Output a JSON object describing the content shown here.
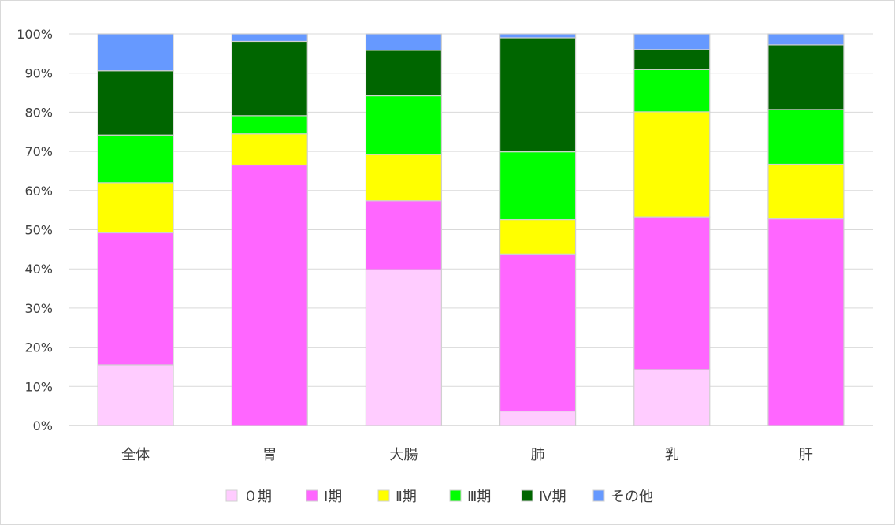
{
  "chart_data": {
    "type": "bar",
    "stacked": true,
    "percent": true,
    "categories": [
      "全体",
      "胃",
      "大腸",
      "肺",
      "乳",
      "肝"
    ],
    "yticks": [
      "0%",
      "10%",
      "20%",
      "30%",
      "40%",
      "50%",
      "60%",
      "70%",
      "80%",
      "90%",
      "100%"
    ],
    "ylim": [
      0,
      100
    ],
    "grid": true,
    "legend_position": "bottom",
    "series": [
      {
        "name": "０期",
        "color": "#ffccff",
        "values": [
          15.5,
          0,
          39.8,
          3.7,
          14.3,
          0
        ]
      },
      {
        "name": "Ⅰ期",
        "color": "#ff66ff",
        "values": [
          33.7,
          66.5,
          17.6,
          40.1,
          39.0,
          52.8
        ]
      },
      {
        "name": "Ⅱ期",
        "color": "#ffff00",
        "values": [
          12.8,
          8.0,
          11.8,
          8.8,
          26.8,
          13.9
        ]
      },
      {
        "name": "Ⅲ期",
        "color": "#00ff00",
        "values": [
          12.2,
          4.6,
          15.0,
          17.3,
          10.8,
          14.0
        ]
      },
      {
        "name": "Ⅳ期",
        "color": "#006600",
        "values": [
          16.4,
          19.0,
          11.6,
          29.1,
          5.1,
          16.5
        ]
      },
      {
        "name": "その他",
        "color": "#6699ff",
        "values": [
          9.4,
          1.9,
          4.2,
          1.0,
          4.0,
          2.8
        ]
      }
    ]
  }
}
